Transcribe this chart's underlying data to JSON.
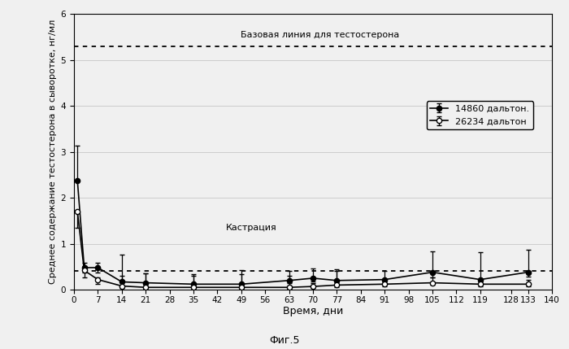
{
  "xlabel": "Время, дни",
  "ylabel": "Среднее содержание тестостерона в сыворотке, нг/мл",
  "subtitle": "Фиг.5",
  "baseline_label": "Базовая линия для тестостерона",
  "castration_label": "Кастрация",
  "baseline_y": 5.3,
  "castration_y": 0.4,
  "legend1": "14860 дальтон.",
  "legend2": "26234 дальтон",
  "xlim": [
    0,
    140
  ],
  "ylim": [
    0,
    6
  ],
  "xticks": [
    0,
    7,
    14,
    21,
    28,
    35,
    42,
    49,
    56,
    63,
    70,
    77,
    84,
    91,
    98,
    105,
    112,
    119,
    128,
    133,
    140
  ],
  "yticks": [
    0,
    1,
    2,
    3,
    4,
    5,
    6
  ],
  "series1_x": [
    1,
    3,
    7,
    14,
    21,
    35,
    49,
    63,
    70,
    77,
    91,
    105,
    119,
    133
  ],
  "series1_y": [
    2.38,
    0.48,
    0.48,
    0.17,
    0.15,
    0.12,
    0.12,
    0.2,
    0.25,
    0.2,
    0.22,
    0.38,
    0.22,
    0.38
  ],
  "series1_yerr_low": [
    0.0,
    0.1,
    0.1,
    0.08,
    0.08,
    0.05,
    0.05,
    0.05,
    0.07,
    0.1,
    0.05,
    0.12,
    0.05,
    0.1
  ],
  "series1_yerr_high": [
    0.75,
    0.1,
    0.1,
    0.6,
    0.2,
    0.18,
    0.22,
    0.1,
    0.22,
    0.2,
    0.18,
    0.45,
    0.6,
    0.48
  ],
  "series2_x": [
    1,
    3,
    7,
    14,
    21,
    35,
    49,
    63,
    70,
    77,
    91,
    105,
    119,
    133
  ],
  "series2_y": [
    1.7,
    0.42,
    0.22,
    0.08,
    0.05,
    0.05,
    0.05,
    0.05,
    0.07,
    0.1,
    0.12,
    0.15,
    0.12,
    0.12
  ],
  "series2_yerr_low": [
    0.35,
    0.15,
    0.1,
    0.05,
    0.03,
    0.03,
    0.03,
    0.03,
    0.03,
    0.05,
    0.05,
    0.05,
    0.05,
    0.05
  ],
  "series2_yerr_high": [
    0.0,
    0.1,
    0.05,
    0.22,
    0.3,
    0.28,
    0.38,
    0.35,
    0.08,
    0.35,
    0.12,
    0.12,
    0.12,
    0.1
  ],
  "background_color": "#f0f0f0"
}
